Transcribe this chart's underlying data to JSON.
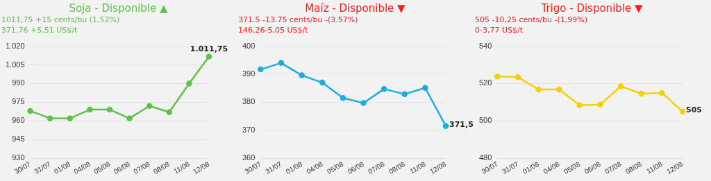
{
  "chart_data": [
    {
      "type": "line",
      "title": "Soja - Disponible ▲",
      "subtitle": "1011,75 +15 cents/bu (1,52%)",
      "annotations": [
        "371,76 +5,51 US$/t"
      ],
      "categories": [
        "30/07",
        "31/07",
        "01/08",
        "04/08",
        "05/08",
        "06/08",
        "07/08",
        "08/08",
        "11/08",
        "12/08"
      ],
      "series": [
        {
          "color": "#5ec24a",
          "values": [
            968,
            962,
            962,
            969,
            969,
            962,
            972,
            967,
            990,
            1011.75
          ],
          "value_labels": [
            null,
            null,
            null,
            null,
            null,
            null,
            null,
            null,
            null,
            "1.011,75"
          ]
        }
      ],
      "ylim": [
        930,
        1020
      ],
      "yticks": [
        {
          "value": 930,
          "label": "930"
        },
        {
          "value": 945,
          "label": "945"
        },
        {
          "value": 960,
          "label": "960"
        },
        {
          "value": 975,
          "label": "975"
        },
        {
          "value": 990,
          "label": "990"
        },
        {
          "value": 1005,
          "label": "1.005"
        },
        {
          "value": 1020,
          "label": "1.020"
        }
      ],
      "grid": "y",
      "marker": "circle",
      "legend": false
    },
    {
      "type": "line",
      "title": "Maíz - Disponible ▼",
      "subtitle": "371.5 -13.75 cents/bu -(3.57%)",
      "annotations": [
        "146,26-5,05 US$/t"
      ],
      "categories": [
        "30/07",
        "31/07",
        "01/08",
        "04/08",
        "05/08",
        "06/08",
        "07/08",
        "08/08",
        "11/08",
        "12/08"
      ],
      "series": [
        {
          "color": "#1aaee0",
          "values": [
            391.7,
            394,
            389.6,
            387,
            381.5,
            379.7,
            384.7,
            382.9,
            385.1,
            371.5
          ],
          "value_labels": [
            null,
            null,
            null,
            null,
            null,
            null,
            null,
            null,
            null,
            "371,5"
          ]
        }
      ],
      "ylim": [
        360,
        400
      ],
      "yticks": [
        360,
        370,
        380,
        390,
        400
      ],
      "grid": "y",
      "marker": "circle",
      "legend": false
    },
    {
      "type": "line",
      "title": "Trigo - Disponible ▼",
      "subtitle": "505 -10,25 cents/bu -(1,99%)",
      "annotations": [
        "0-3,77 US$/t"
      ],
      "categories": [
        "30/07",
        "31/07",
        "01/08",
        "04/08",
        "05/08",
        "06/08",
        "07/08",
        "08/08",
        "11/08",
        "12/08"
      ],
      "series": [
        {
          "color": "#f5d000",
          "values": [
            523.8,
            523.4,
            516.8,
            516.8,
            508.4,
            508.7,
            518.5,
            514.6,
            515,
            505
          ],
          "value_labels": [
            null,
            null,
            null,
            null,
            null,
            null,
            null,
            null,
            null,
            "505"
          ]
        }
      ],
      "ylim": [
        480,
        540
      ],
      "yticks": [
        480,
        500,
        520,
        540
      ],
      "grid": "y",
      "marker": "circle",
      "legend": false
    }
  ]
}
